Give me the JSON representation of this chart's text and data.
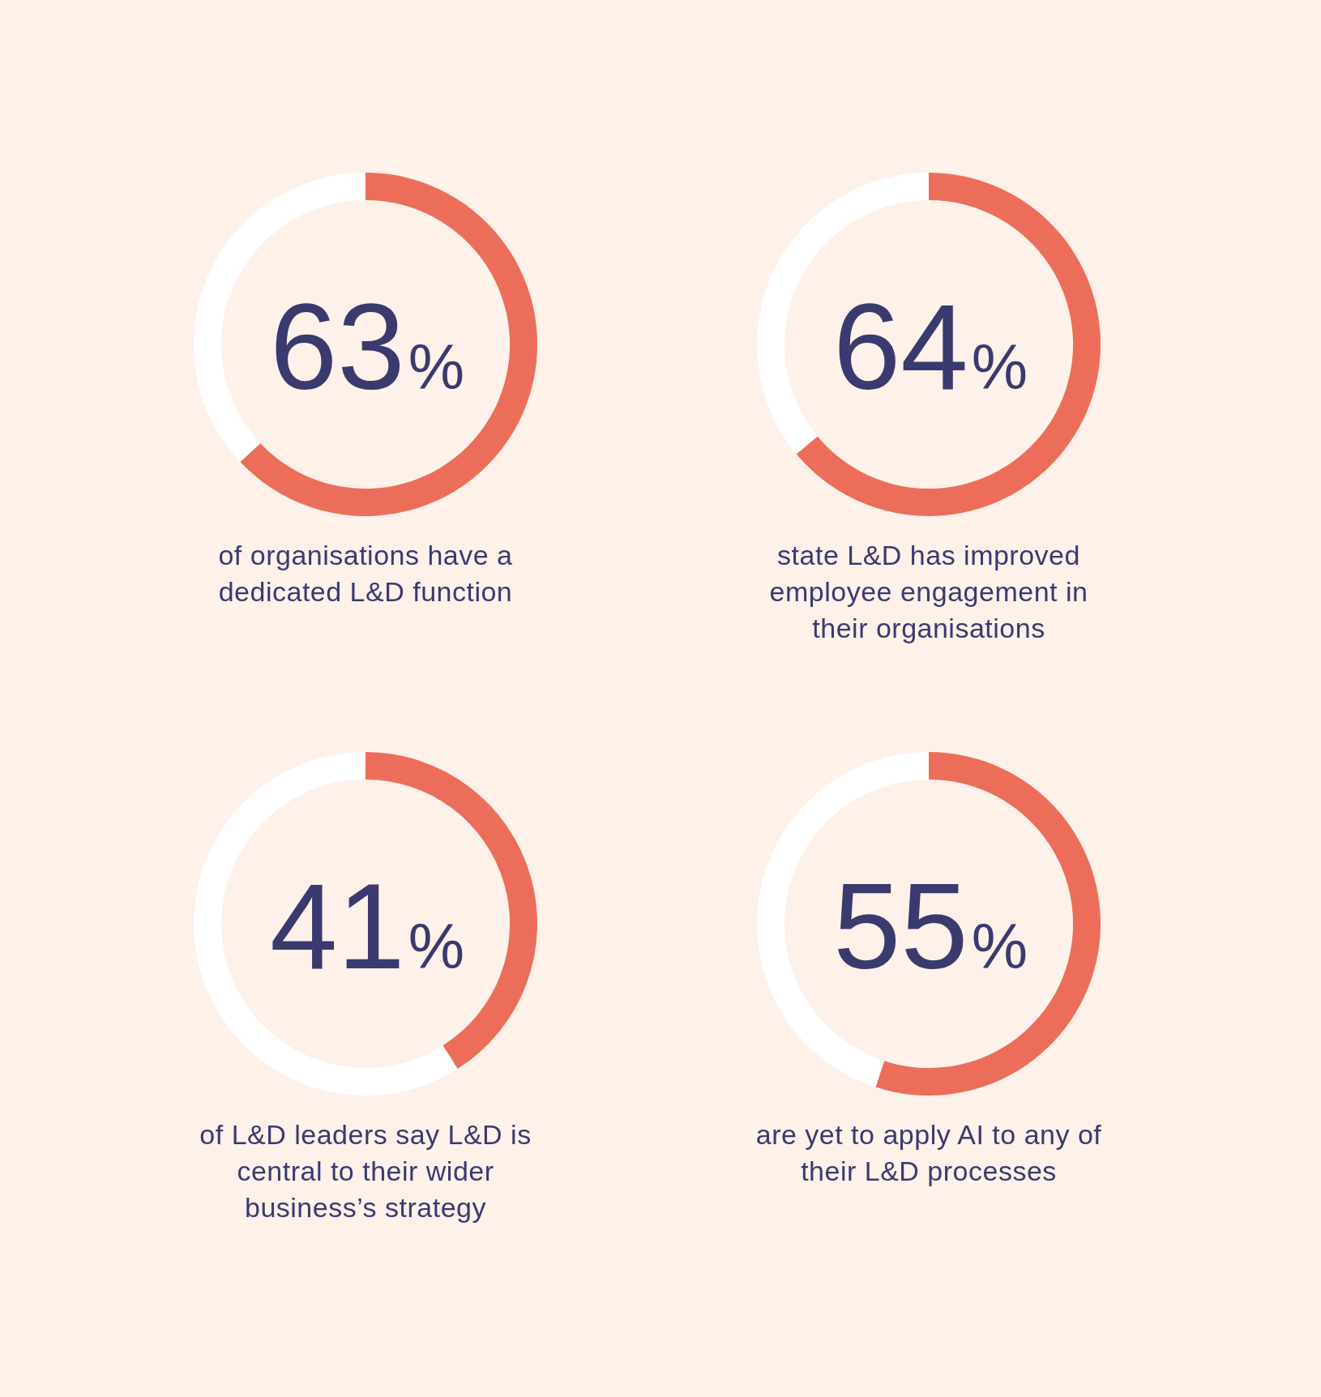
{
  "chart_data": [
    {
      "type": "donut",
      "categories": [
        null,
        null
      ],
      "values": [
        63,
        37
      ],
      "colors": [
        "#ec6e5a",
        "#ffffff"
      ],
      "value_labels": [
        "63%",
        null
      ],
      "annotations": [
        "of organisations have a dedicated L&D function"
      ]
    },
    {
      "type": "donut",
      "categories": [
        null,
        null
      ],
      "values": [
        64,
        36
      ],
      "colors": [
        "#ec6e5a",
        "#ffffff"
      ],
      "value_labels": [
        "64%",
        null
      ],
      "annotations": [
        "state L&D has improved employee engagement in their organisations"
      ]
    },
    {
      "type": "donut",
      "categories": [
        null,
        null
      ],
      "values": [
        41,
        59
      ],
      "colors": [
        "#ec6e5a",
        "#ffffff"
      ],
      "value_labels": [
        "41%",
        null
      ],
      "annotations": [
        "of L&D leaders say L&D is central to their wider business’s strategy"
      ]
    },
    {
      "type": "donut",
      "categories": [
        null,
        null
      ],
      "values": [
        55,
        45
      ],
      "colors": [
        "#ec6e5a",
        "#ffffff"
      ],
      "value_labels": [
        "55%",
        null
      ],
      "annotations": [
        "are yet to apply AI to any of their L&D processes"
      ]
    }
  ]
}
